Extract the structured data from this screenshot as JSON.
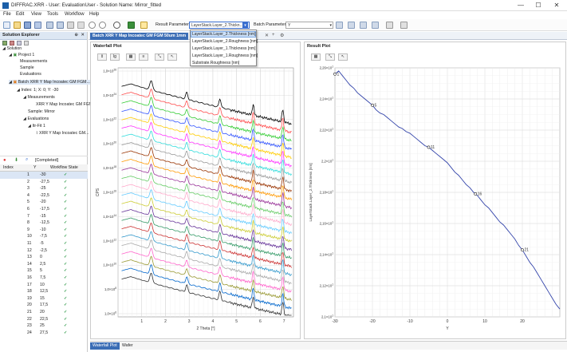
{
  "window": {
    "title": "DIFFRAC.XRR - User: EvaluationUser - Solution Name: Mirror_fitted",
    "minimize": "—",
    "maximize": "☐",
    "close": "✕"
  },
  "menu": [
    "File",
    "Edit",
    "View",
    "Tools",
    "Workflow",
    "Help"
  ],
  "toolbar": {
    "result_parameter_label": "Result Parameter",
    "result_parameter_value": "LayerStack.Layer_2.Thickn...",
    "batch_parameter_label": "Batch Parameter",
    "batch_parameter_value": "Y"
  },
  "dropdown": {
    "options": [
      "LayerStack.Layer_2.Thickness [nm]",
      "LayerStack.Layer_2.Roughness [nm]",
      "LayerStack.Layer_1.Thickness [nm]",
      "LayerStack.Layer_1.Roughness [nm]",
      "Substrate.Roughness [nm]"
    ],
    "selected_index": 0
  },
  "solution_explorer": {
    "title": "Solution Explorer",
    "pin": "⊕",
    "close": "✕",
    "tree": [
      {
        "label": "Solution",
        "indent": 0
      },
      {
        "label": "Project 1",
        "indent": 1
      },
      {
        "label": "Measurements",
        "indent": 2
      },
      {
        "label": "Sample",
        "indent": 2
      },
      {
        "label": "Evaluations",
        "indent": 2
      },
      {
        "label": "Batch XRR Y Map Incoatec GM FGM...",
        "indent": 1
      },
      {
        "label": "Index: 1; X: 0; Y: -30",
        "indent": 2
      },
      {
        "label": "Measurements",
        "indent": 3
      },
      {
        "label": "XRR Y Map Incoatec GM FGM...",
        "indent": 4
      },
      {
        "label": "Sample: Mirror",
        "indent": 3
      },
      {
        "label": "Evaluations",
        "indent": 3
      },
      {
        "label": "Itr-Fit 1",
        "indent": 4
      },
      {
        "label": "XRR Y Map Incoatec GM...",
        "indent": 5
      }
    ],
    "status": "[Completed]"
  },
  "table": {
    "headers": [
      "Index",
      "Y",
      "Workflow State"
    ],
    "rows": [
      [
        "1",
        "-30"
      ],
      [
        "2",
        "-27,5"
      ],
      [
        "3",
        "-25"
      ],
      [
        "4",
        "-22,5"
      ],
      [
        "5",
        "-20"
      ],
      [
        "6",
        "-17,5"
      ],
      [
        "7",
        "-15"
      ],
      [
        "8",
        "-12,5"
      ],
      [
        "9",
        "-10"
      ],
      [
        "10",
        "-7,5"
      ],
      [
        "11",
        "-5"
      ],
      [
        "12",
        "-2,5"
      ],
      [
        "13",
        "0"
      ],
      [
        "14",
        "2,5"
      ],
      [
        "15",
        "5"
      ],
      [
        "16",
        "7,5"
      ],
      [
        "17",
        "10"
      ],
      [
        "18",
        "12,5"
      ],
      [
        "19",
        "15"
      ],
      [
        "20",
        "17,5"
      ],
      [
        "21",
        "20"
      ],
      [
        "22",
        "22,5"
      ],
      [
        "23",
        "25"
      ],
      [
        "24",
        "27,5"
      ]
    ],
    "state_glyph": "✓"
  },
  "document_tab": {
    "title": "Batch XRR Y Map Incoatec GM FGM 50um 1mm",
    "extra_tab": "+"
  },
  "waterfall": {
    "title": "Waterfall Plot",
    "ylabel": "CPS",
    "xlabel": "2 Theta [°]",
    "xticks": [
      "1",
      "2",
      "3",
      "4",
      "5",
      "6",
      "7"
    ],
    "yticks": [
      "1,0×10^26",
      "1,0×10^24",
      "1,0×10^22",
      "1,0×10^20",
      "1,0×10^18",
      "1,0×10^16",
      "1,0×10^14",
      "1,0×10^12",
      "1,0×10^10",
      "1,0×10^8",
      "1,0×10^6"
    ]
  },
  "result_plot": {
    "title": "Result Plot",
    "ylabel": "LayerStack.Layer_2.Thickness [nm]",
    "xlabel": "Y",
    "xticks": [
      "-30",
      "-20",
      "-10",
      "0",
      "10",
      "20"
    ],
    "yticks": [
      "2,26×10^1",
      "2,24×10^1",
      "2,22×10^1",
      "2,2×10^1",
      "2,18×10^1",
      "2,16×10^1",
      "2,14×10^1",
      "2,12×10^1",
      "2,1×10^1"
    ],
    "annotations": [
      "1",
      "5",
      "11",
      "16",
      "21"
    ]
  },
  "bottom_tabs": [
    "Waterfall Plot",
    "Wafer"
  ],
  "chart_data": [
    {
      "type": "line",
      "title": "Waterfall Plot",
      "xlabel": "2 Theta [°]",
      "ylabel": "CPS",
      "xlim": [
        0,
        7.4
      ],
      "yscale": "log",
      "series_count": 24,
      "colors": [
        "#000000",
        "#ff4d4d",
        "#33cc33",
        "#3355ff",
        "#ffcc00",
        "#ff33ff",
        "#33dddd",
        "#999999",
        "#993300",
        "#ff9900",
        "#993399",
        "#66cc66",
        "#ffaacc",
        "#66ccff",
        "#cccc33",
        "#663399",
        "#339966",
        "#cc3333",
        "#3399cc",
        "#aaaaaa",
        "#ff66cc",
        "#999933",
        "#0066cc",
        "#333333"
      ]
    },
    {
      "type": "line",
      "title": "Result Plot",
      "xlabel": "Y",
      "ylabel": "LayerStack.Layer_2.Thickness [nm]",
      "xlim": [
        -30,
        30
      ],
      "ylim": [
        21.0,
        22.6
      ],
      "x": [
        -30,
        -29,
        -28,
        -27,
        -26,
        -25,
        -24,
        -23,
        -22,
        -21,
        -20,
        -19,
        -18,
        -17,
        -16,
        -15,
        -14,
        -13,
        -12,
        -11,
        -10,
        -9,
        -8,
        -7,
        -6,
        -5,
        -4,
        -3,
        -2,
        -1,
        0,
        1,
        2,
        3,
        4,
        5,
        6,
        7,
        8,
        9,
        10,
        11,
        12,
        13,
        14,
        15,
        16,
        17,
        18,
        19,
        20,
        21,
        22,
        23,
        24,
        25,
        26,
        27,
        28,
        29,
        30
      ],
      "y": [
        22.56,
        22.58,
        22.55,
        22.52,
        22.49,
        22.47,
        22.44,
        22.42,
        22.4,
        22.38,
        22.36,
        22.33,
        22.31,
        22.3,
        22.28,
        22.26,
        22.24,
        22.22,
        22.21,
        22.19,
        22.18,
        22.16,
        22.14,
        22.12,
        22.1,
        22.09,
        22.07,
        22.05,
        22.03,
        22.01,
        21.99,
        21.96,
        21.93,
        21.91,
        21.88,
        21.85,
        21.83,
        21.8,
        21.78,
        21.75,
        21.72,
        21.7,
        21.67,
        21.64,
        21.61,
        21.59,
        21.56,
        21.53,
        21.5,
        21.46,
        21.43,
        21.39,
        21.35,
        21.32,
        21.28,
        21.24,
        21.2,
        21.16,
        21.12,
        21.08,
        21.05
      ],
      "labeled_points": [
        {
          "label": "1",
          "x": -30,
          "y": 22.56
        },
        {
          "label": "5",
          "x": -20,
          "y": 22.36
        },
        {
          "label": "11",
          "x": -5,
          "y": 22.09
        },
        {
          "label": "16",
          "x": 7.5,
          "y": 21.79
        },
        {
          "label": "21",
          "x": 20,
          "y": 21.43
        }
      ],
      "color": "#3344aa"
    }
  ]
}
